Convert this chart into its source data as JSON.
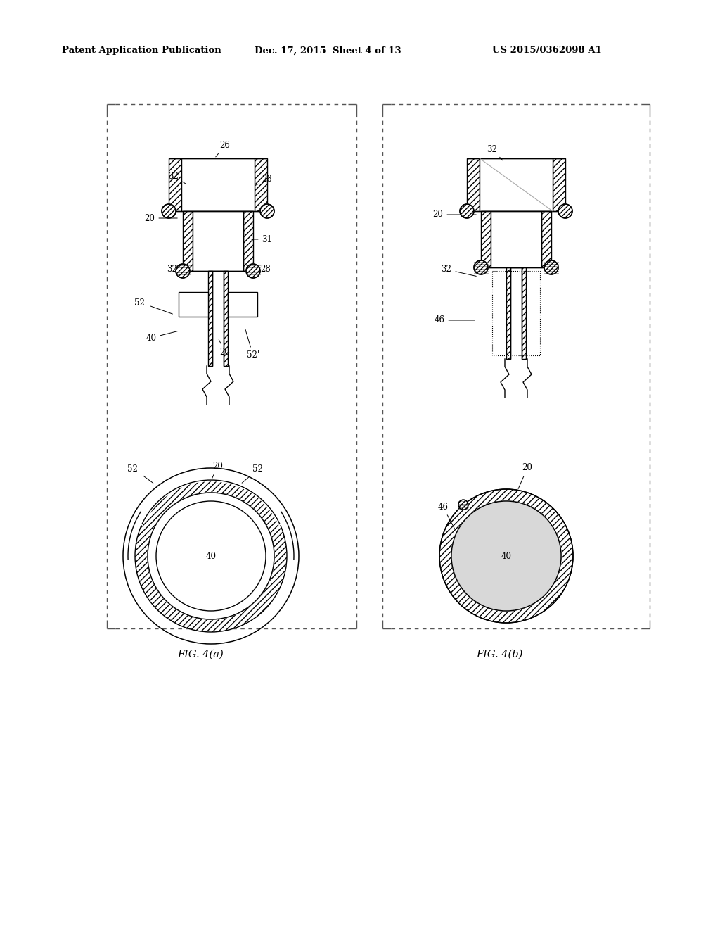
{
  "title_left": "Patent Application Publication",
  "title_mid": "Dec. 17, 2015  Sheet 4 of 13",
  "title_right": "US 2015/0362098 A1",
  "fig_a_label": "FIG. 4(a)",
  "fig_b_label": "FIG. 4(b)",
  "bg_color": "#ffffff",
  "lc": "#000000",
  "gray": "#aaaaaa",
  "lightgray": "#d8d8d8"
}
